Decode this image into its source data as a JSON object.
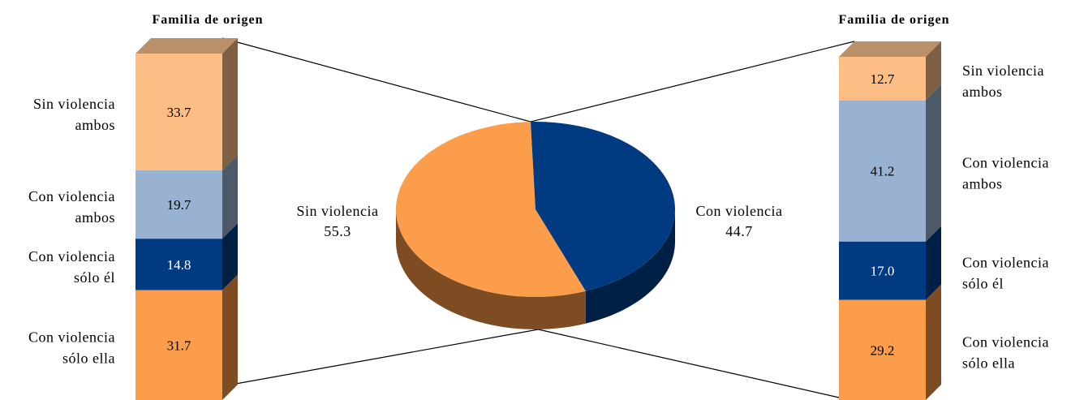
{
  "chart_data": [
    {
      "type": "pie",
      "title": "",
      "slices": [
        {
          "label": "Sin violencia",
          "value": 55.3,
          "value_label": "55.3",
          "color": "#FB9D4A",
          "side_color": "#7E4C22"
        },
        {
          "label": "Con violencia",
          "value": 44.7,
          "value_label": "44.7",
          "color": "#003A80",
          "side_color": "#001F45"
        }
      ]
    },
    {
      "type": "bar",
      "stacked": true,
      "title": "Familia de origen",
      "categories": [
        "Sin violencia ambos",
        "Con violencia ambos",
        "Con violencia sólo él",
        "Con violencia sólo ella"
      ],
      "category_lines": [
        [
          "Sin violencia",
          "ambos"
        ],
        [
          "Con violencia",
          "ambos"
        ],
        [
          "Con violencia",
          "sólo él"
        ],
        [
          "Con violencia",
          "sólo ella"
        ]
      ],
      "values": [
        33.7,
        19.7,
        14.8,
        31.7
      ],
      "value_labels": [
        "33.7",
        "19.7",
        "14.8",
        "31.7"
      ],
      "colors": [
        "#FCBE85",
        "#99B2D1",
        "#003A80",
        "#FB9D4A"
      ],
      "side_colors": [
        "#7E6144",
        "#4C5968",
        "#001F45",
        "#7E4C22"
      ],
      "label_colors": [
        "#000000",
        "#000000",
        "#FFFFFF",
        "#000000"
      ],
      "linked_slice": "Sin violencia"
    },
    {
      "type": "bar",
      "stacked": true,
      "title": "Familia de origen",
      "categories": [
        "Sin violencia ambos",
        "Con violencia ambos",
        "Con violencia sólo él",
        "Con violencia sólo ella"
      ],
      "category_lines": [
        [
          "Sin violencia",
          "ambos"
        ],
        [
          "Con violencia",
          "ambos"
        ],
        [
          "Con violencia",
          "sólo él"
        ],
        [
          "Con violencia",
          "sólo ella"
        ]
      ],
      "values": [
        12.7,
        41.2,
        17.0,
        29.2
      ],
      "value_labels": [
        "12.7",
        "41.2",
        "17.0",
        "29.2"
      ],
      "colors": [
        "#FCBE85",
        "#99B2D1",
        "#003A80",
        "#FB9D4A"
      ],
      "side_colors": [
        "#7E6144",
        "#4C5968",
        "#001F45",
        "#7E4C22"
      ],
      "label_colors": [
        "#000000",
        "#000000",
        "#FFFFFF",
        "#000000"
      ],
      "linked_slice": "Con violencia"
    }
  ]
}
